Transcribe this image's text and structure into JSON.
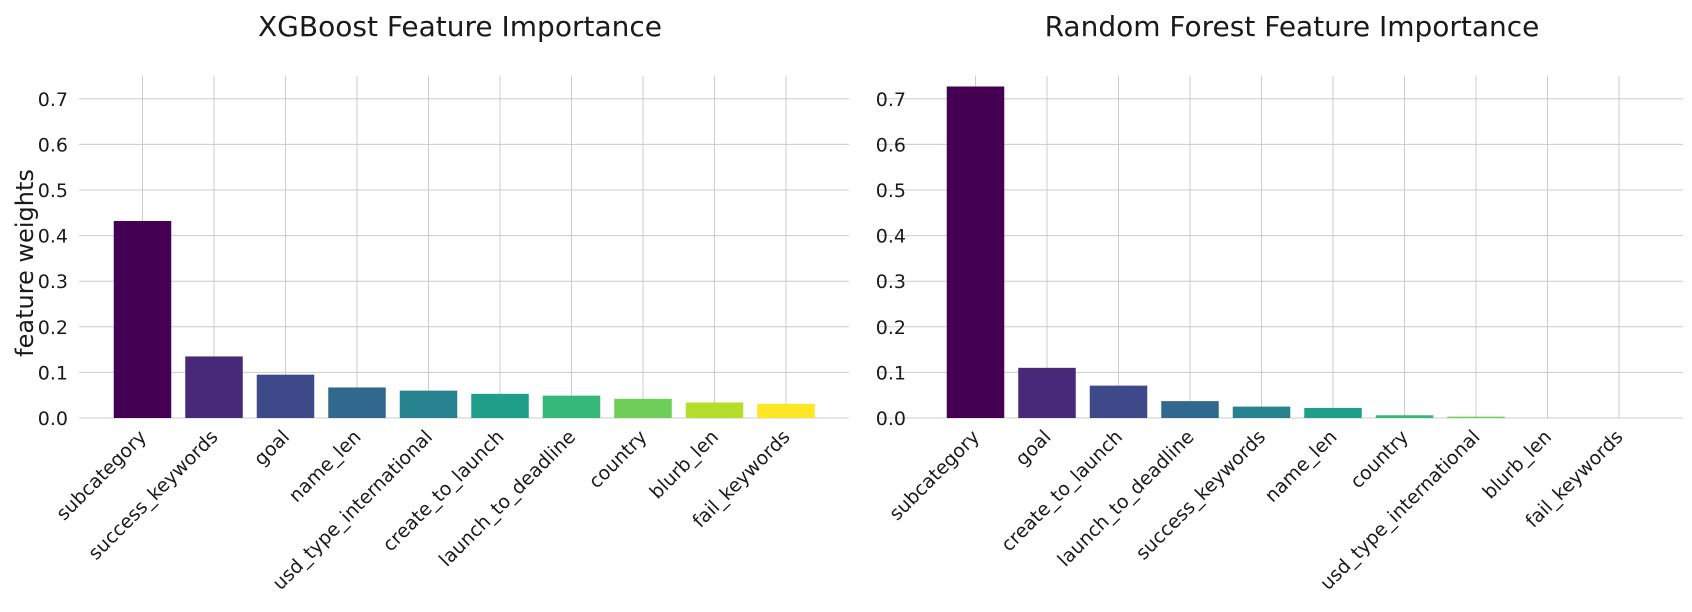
{
  "chart_data": [
    {
      "type": "bar",
      "title": "XGBoost Feature Importance",
      "xlabel": "",
      "ylabel": "feature weights",
      "categories": [
        "subcategory",
        "success_keywords",
        "goal",
        "name_len",
        "usd_type_international",
        "create_to_launch",
        "launch_to_deadline",
        "country",
        "blurb_len",
        "fail_keywords"
      ],
      "values": [
        0.432,
        0.135,
        0.095,
        0.067,
        0.06,
        0.053,
        0.049,
        0.042,
        0.034,
        0.031
      ],
      "colors": [
        "#440154",
        "#482878",
        "#3e4989",
        "#31688e",
        "#26828e",
        "#1f9e89",
        "#35b779",
        "#6ece58",
        "#b5de2b",
        "#fde725"
      ],
      "ylim": [
        0,
        0.75
      ],
      "yticks": [
        "0.0",
        "0.1",
        "0.2",
        "0.3",
        "0.4",
        "0.5",
        "0.6",
        "0.7"
      ],
      "grid": true,
      "legend": "none"
    },
    {
      "type": "bar",
      "title": "Random Forest Feature Importance",
      "xlabel": "",
      "ylabel": "",
      "categories": [
        "subcategory",
        "goal",
        "create_to_launch",
        "launch_to_deadline",
        "success_keywords",
        "name_len",
        "country",
        "usd_type_international",
        "blurb_len",
        "fail_keywords"
      ],
      "values": [
        0.727,
        0.11,
        0.071,
        0.037,
        0.025,
        0.022,
        0.006,
        0.003,
        0.0,
        0.0
      ],
      "colors": [
        "#440154",
        "#482878",
        "#3e4989",
        "#31688e",
        "#26828e",
        "#1f9e89",
        "#35b779",
        "#6ece58",
        "#b5de2b",
        "#fde725"
      ],
      "ylim": [
        0,
        0.75
      ],
      "yticks": [
        "0.0",
        "0.1",
        "0.2",
        "0.3",
        "0.4",
        "0.5",
        "0.6",
        "0.7"
      ],
      "grid": true,
      "legend": "none"
    }
  ]
}
